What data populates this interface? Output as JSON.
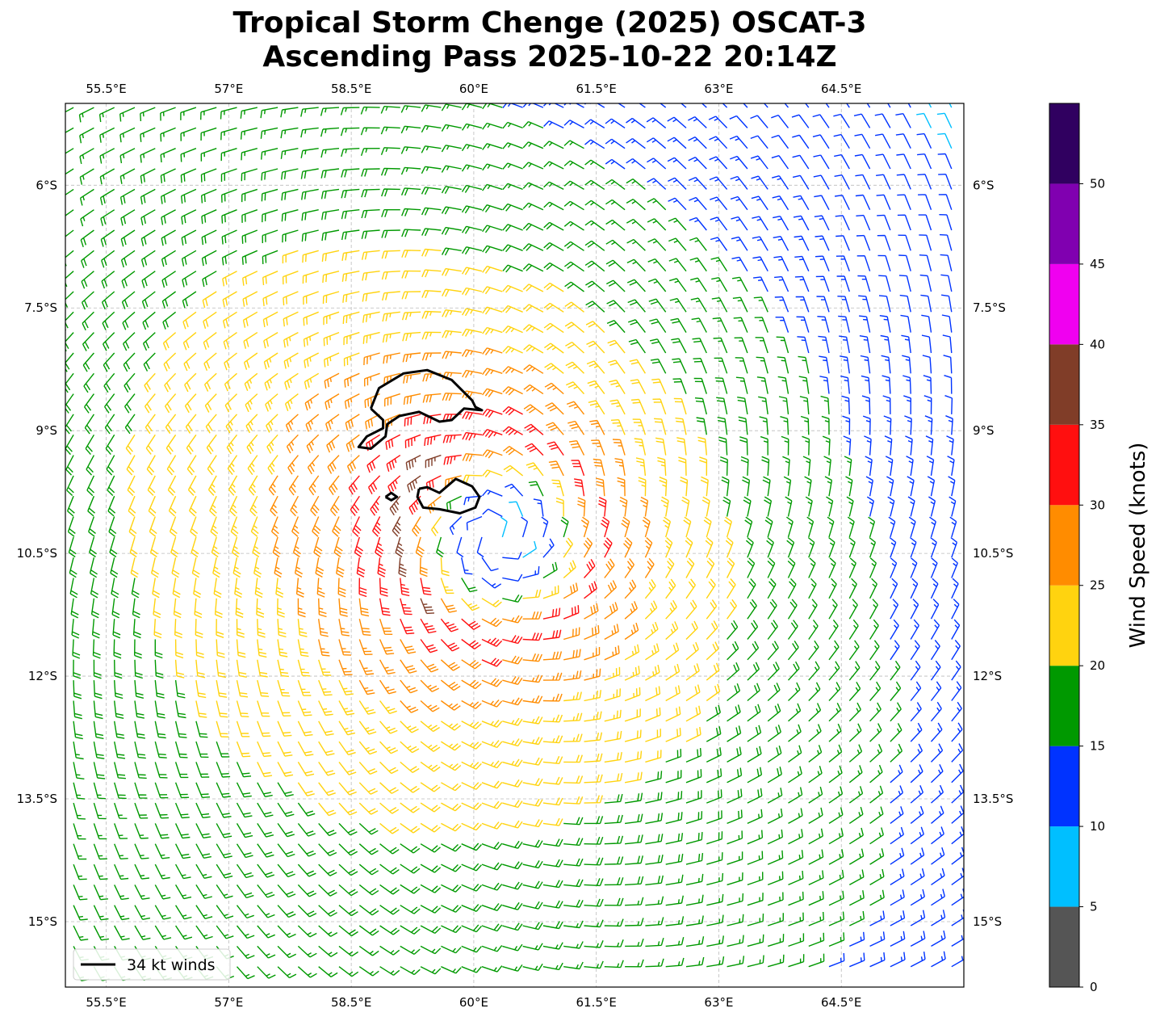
{
  "chart_data": {
    "type": "wind_barbs",
    "title_line1": "Tropical Storm Chenge (2025) OSCAT-3",
    "title_line2": "Ascending Pass 2025-10-22 20:14Z",
    "extent": {
      "lon": [
        55.0,
        66.0
      ],
      "lat": [
        -15.8,
        -5.0
      ]
    },
    "x_ticks": [
      {
        "value": 55.5,
        "label": "55.5°E"
      },
      {
        "value": 57,
        "label": "57°E"
      },
      {
        "value": 58.5,
        "label": "58.5°E"
      },
      {
        "value": 60,
        "label": "60°E"
      },
      {
        "value": 61.5,
        "label": "61.5°E"
      },
      {
        "value": 63,
        "label": "63°E"
      },
      {
        "value": 64.5,
        "label": "64.5°E"
      }
    ],
    "y_ticks": [
      {
        "value": -6,
        "label": "6°S"
      },
      {
        "value": -7.5,
        "label": "7.5°S"
      },
      {
        "value": -9,
        "label": "9°S"
      },
      {
        "value": -10.5,
        "label": "10.5°S"
      },
      {
        "value": -12,
        "label": "12°S"
      },
      {
        "value": -13.5,
        "label": "13.5°S"
      },
      {
        "value": -15,
        "label": "15°S"
      }
    ],
    "grid": true,
    "storm_center": {
      "lon": 60.3,
      "lat": -10.3
    },
    "max_wind_kt": 33,
    "radius_max_wind_deg": 1.2,
    "barb_spacing_deg": 0.25,
    "contour_34kt": [
      [
        [
          58.74,
          -8.73
        ],
        [
          58.84,
          -8.48
        ],
        [
          59.14,
          -8.3
        ],
        [
          59.43,
          -8.26
        ],
        [
          59.73,
          -8.38
        ],
        [
          59.98,
          -8.63
        ],
        [
          60.02,
          -8.71
        ],
        [
          60.1,
          -8.75
        ],
        [
          59.88,
          -8.73
        ],
        [
          59.73,
          -8.87
        ],
        [
          59.58,
          -8.89
        ],
        [
          59.33,
          -8.77
        ],
        [
          59.09,
          -8.82
        ],
        [
          58.94,
          -8.92
        ],
        [
          58.92,
          -9.07
        ],
        [
          58.74,
          -9.22
        ],
        [
          58.59,
          -9.2
        ],
        [
          58.69,
          -9.07
        ],
        [
          58.89,
          -8.97
        ],
        [
          58.89,
          -8.87
        ],
        [
          58.74,
          -8.73
        ]
      ],
      [
        [
          59.33,
          -9.71
        ],
        [
          59.43,
          -9.69
        ],
        [
          59.58,
          -9.76
        ],
        [
          59.78,
          -9.59
        ],
        [
          59.98,
          -9.68
        ],
        [
          60.07,
          -9.81
        ],
        [
          60.02,
          -9.94
        ],
        [
          59.83,
          -10.01
        ],
        [
          59.58,
          -9.96
        ],
        [
          59.38,
          -9.94
        ],
        [
          59.31,
          -9.81
        ],
        [
          59.33,
          -9.71
        ]
      ],
      [
        [
          58.92,
          -9.81
        ],
        [
          58.99,
          -9.76
        ],
        [
          59.06,
          -9.81
        ],
        [
          58.99,
          -9.85
        ],
        [
          58.92,
          -9.81
        ]
      ]
    ],
    "legend": {
      "label": "34 kt winds",
      "placement": "lower-left"
    },
    "colorbar": {
      "label": "Wind Speed (knots)",
      "bounds": [
        0,
        5,
        10,
        15,
        20,
        25,
        30,
        35,
        40,
        45,
        50,
        55
      ],
      "tick_labels": [
        "0",
        "5",
        "10",
        "15",
        "20",
        "25",
        "30",
        "35",
        "40",
        "45",
        "50"
      ],
      "colors": [
        "#555555",
        "#00bfff",
        "#0033ff",
        "#009900",
        "#ffd30f",
        "#ff8c00",
        "#ff0f0f",
        "#803d28",
        "#f000f0",
        "#8000b0",
        "#300060"
      ]
    }
  }
}
